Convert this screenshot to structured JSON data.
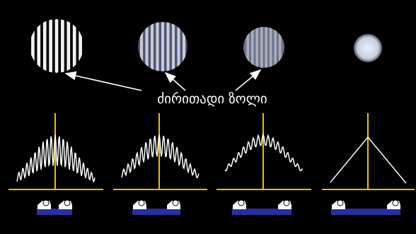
{
  "label": "ძირითადი ზოლი"
}
